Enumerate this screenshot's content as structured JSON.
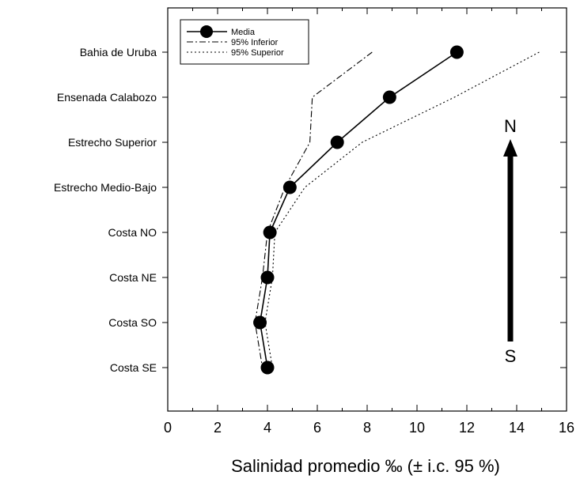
{
  "chart_data": {
    "type": "line",
    "orientation": "horizontal",
    "categories": [
      "Bahia de Uruba",
      "Ensenada Calabozo",
      "Estrecho Superior",
      "Estrecho Medio-Bajo",
      "Costa NO",
      "Costa NE",
      "Costa SO",
      "Costa SE"
    ],
    "xlabel": "Salinidad promedio ‰ (± i.c. 95 %)",
    "xlim": [
      0,
      16
    ],
    "xticks": [
      0,
      2,
      4,
      6,
      8,
      10,
      12,
      14,
      16
    ],
    "grid": false,
    "legend_position": "top-left",
    "series": [
      {
        "name": "Media",
        "style": "solid-with-markers",
        "values": [
          11.6,
          8.9,
          6.8,
          4.9,
          4.1,
          4.0,
          3.7,
          4.0
        ]
      },
      {
        "name": "95% Inferior",
        "style": "dash-dot",
        "values": [
          8.2,
          5.8,
          5.7,
          4.7,
          4.0,
          3.8,
          3.5,
          3.8
        ]
      },
      {
        "name": "95% Superior",
        "style": "dotted",
        "values": [
          14.9,
          11.5,
          7.8,
          5.5,
          4.3,
          4.2,
          3.9,
          4.2
        ]
      }
    ],
    "annotations": {
      "north": "N",
      "south": "S"
    }
  },
  "colors": {
    "axis": "#000000",
    "line": "#000000",
    "marker": "#000000"
  }
}
